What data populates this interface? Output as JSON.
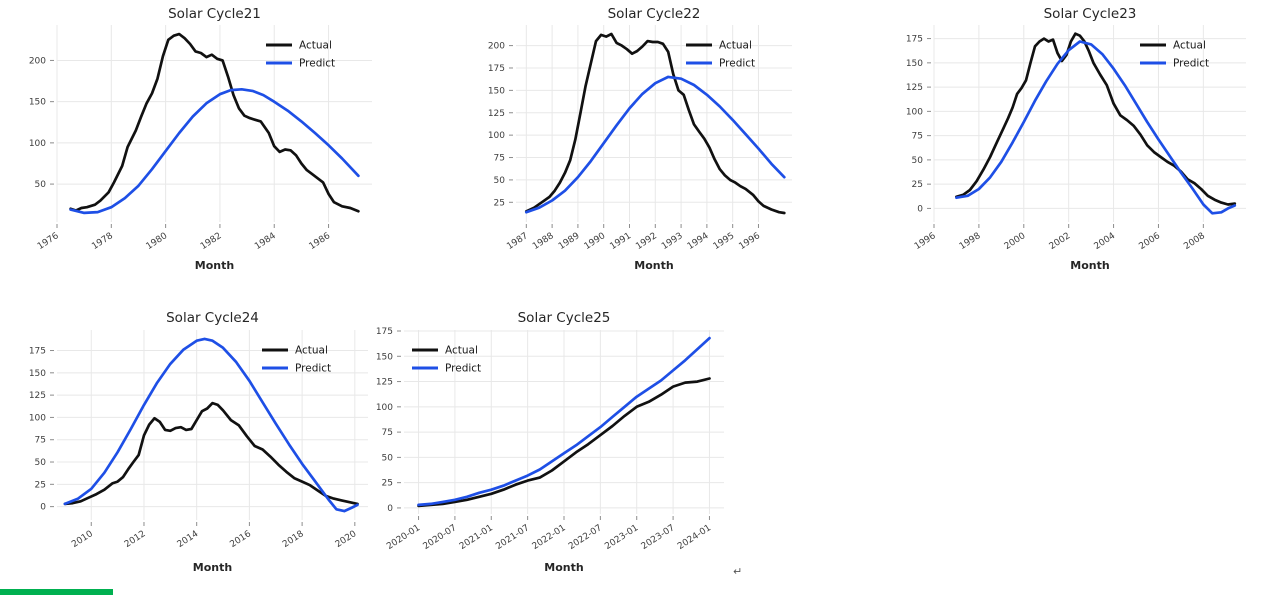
{
  "page": {
    "return_mark": "↵",
    "green_bar_color": "#00b050",
    "background": "#ffffff"
  },
  "palette": {
    "actual": "#111111",
    "predict": "#1e4fe6",
    "grid": "#e8e8e8",
    "tick_mark": "#8c8c8c",
    "tick_text": "#3d3d3d",
    "title_text": "#262626",
    "legend_text": "#1a1a1a"
  },
  "legend_labels": {
    "actual": "Actual",
    "predict": "Predict"
  },
  "chart_data": [
    {
      "type": "line",
      "title": "Solar Cycle21",
      "xlabel": "Month",
      "legend_pos": "upper-right",
      "legend": [
        "Actual",
        "Predict"
      ],
      "xlim": [
        1976.0,
        1987.6
      ],
      "ylim": [
        4,
        243
      ],
      "yticks": [
        50,
        100,
        150,
        200
      ],
      "xticks": [
        {
          "v": 1976,
          "label": "1976"
        },
        {
          "v": 1978,
          "label": "1978"
        },
        {
          "v": 1980,
          "label": "1980"
        },
        {
          "v": 1982,
          "label": "1982"
        },
        {
          "v": 1984,
          "label": "1984"
        },
        {
          "v": 1986,
          "label": "1986"
        }
      ],
      "series": [
        {
          "name": "Actual",
          "color_key": "actual",
          "x": [
            1976.5,
            1976.7,
            1976.9,
            1977.1,
            1977.4,
            1977.6,
            1977.9,
            1978.1,
            1978.4,
            1978.6,
            1978.9,
            1979.1,
            1979.3,
            1979.5,
            1979.7,
            1979.9,
            1980.1,
            1980.3,
            1980.5,
            1980.7,
            1980.9,
            1981.1,
            1981.3,
            1981.5,
            1981.7,
            1981.9,
            1982.1,
            1982.3,
            1982.5,
            1982.7,
            1982.9,
            1983.1,
            1983.3,
            1983.5,
            1983.8,
            1984.0,
            1984.2,
            1984.4,
            1984.6,
            1984.8,
            1985.0,
            1985.2,
            1985.4,
            1985.6,
            1985.8,
            1986.0,
            1986.2,
            1986.5,
            1986.8,
            1987.1
          ],
          "y": [
            20,
            18,
            21,
            22,
            25,
            30,
            40,
            52,
            72,
            95,
            115,
            132,
            148,
            160,
            178,
            205,
            225,
            230,
            232,
            227,
            220,
            211,
            209,
            204,
            207,
            202,
            200,
            180,
            158,
            142,
            133,
            130,
            128,
            126,
            112,
            96,
            89,
            92,
            91,
            85,
            75,
            67,
            62,
            57,
            52,
            38,
            28,
            23,
            21,
            17
          ]
        },
        {
          "name": "Predict",
          "color_key": "predict",
          "x": [
            1976.5,
            1977.0,
            1977.5,
            1978.0,
            1978.5,
            1979.0,
            1979.5,
            1980.0,
            1980.5,
            1981.0,
            1981.5,
            1982.0,
            1982.4,
            1982.8,
            1983.2,
            1983.6,
            1984.0,
            1984.5,
            1985.0,
            1985.5,
            1986.0,
            1986.5,
            1987.1
          ],
          "y": [
            19,
            15,
            16,
            22,
            33,
            48,
            68,
            90,
            112,
            132,
            148,
            159,
            164,
            165,
            163,
            158,
            150,
            139,
            126,
            112,
            97,
            81,
            60
          ]
        }
      ]
    },
    {
      "type": "line",
      "title": "Solar Cycle22",
      "xlabel": "Month",
      "legend_pos": "upper-right",
      "legend": [
        "Actual",
        "Predict"
      ],
      "xlim": [
        1986.6,
        1997.3
      ],
      "ylim": [
        3,
        223
      ],
      "yticks": [
        25,
        50,
        75,
        100,
        125,
        150,
        175,
        200
      ],
      "xticks": [
        {
          "v": 1987,
          "label": "1987"
        },
        {
          "v": 1988,
          "label": "1988"
        },
        {
          "v": 1989,
          "label": "1989"
        },
        {
          "v": 1990,
          "label": "1990"
        },
        {
          "v": 1991,
          "label": "1991"
        },
        {
          "v": 1992,
          "label": "1992"
        },
        {
          "v": 1993,
          "label": "1993"
        },
        {
          "v": 1994,
          "label": "1994"
        },
        {
          "v": 1995,
          "label": "1995"
        },
        {
          "v": 1996,
          "label": "1996"
        }
      ],
      "series": [
        {
          "name": "Actual",
          "color_key": "actual",
          "x": [
            1987.0,
            1987.3,
            1987.6,
            1987.9,
            1988.1,
            1988.3,
            1988.5,
            1988.7,
            1988.9,
            1989.1,
            1989.3,
            1989.5,
            1989.7,
            1989.9,
            1990.1,
            1990.3,
            1990.5,
            1990.7,
            1990.9,
            1991.1,
            1991.3,
            1991.5,
            1991.7,
            1991.9,
            1992.1,
            1992.3,
            1992.5,
            1992.7,
            1992.9,
            1993.1,
            1993.3,
            1993.5,
            1993.7,
            1993.9,
            1994.1,
            1994.3,
            1994.5,
            1994.7,
            1994.9,
            1995.1,
            1995.3,
            1995.5,
            1995.8,
            1996.0,
            1996.2,
            1996.5,
            1996.8,
            1997.0
          ],
          "y": [
            15,
            19,
            25,
            31,
            38,
            47,
            58,
            72,
            95,
            125,
            155,
            180,
            205,
            212,
            210,
            213,
            203,
            200,
            196,
            191,
            194,
            199,
            205,
            204,
            204,
            202,
            193,
            168,
            150,
            145,
            128,
            112,
            104,
            96,
            86,
            73,
            62,
            55,
            50,
            47,
            43,
            40,
            33,
            26,
            21,
            17,
            14,
            13
          ]
        },
        {
          "name": "Predict",
          "color_key": "predict",
          "x": [
            1987.0,
            1987.5,
            1988.0,
            1988.5,
            1989.0,
            1989.5,
            1990.0,
            1990.5,
            1991.0,
            1991.5,
            1992.0,
            1992.5,
            1993.0,
            1993.5,
            1994.0,
            1994.5,
            1995.0,
            1995.5,
            1996.0,
            1996.5,
            1997.0
          ],
          "y": [
            14,
            19,
            27,
            38,
            53,
            71,
            91,
            111,
            130,
            146,
            158,
            165,
            163,
            156,
            145,
            132,
            117,
            101,
            85,
            68,
            53
          ]
        }
      ]
    },
    {
      "type": "line",
      "title": "Solar Cycle23",
      "xlabel": "Month",
      "legend_pos": "upper-right",
      "legend": [
        "Actual",
        "Predict"
      ],
      "xlim": [
        1996.0,
        2009.9
      ],
      "ylim": [
        -14,
        189
      ],
      "yticks": [
        0,
        25,
        50,
        75,
        100,
        125,
        150,
        175
      ],
      "xticks": [
        {
          "v": 1996,
          "label": "1996"
        },
        {
          "v": 1998,
          "label": "1998"
        },
        {
          "v": 2000,
          "label": "2000"
        },
        {
          "v": 2002,
          "label": "2002"
        },
        {
          "v": 2004,
          "label": "2004"
        },
        {
          "v": 2006,
          "label": "2006"
        },
        {
          "v": 2008,
          "label": "2008"
        }
      ],
      "series": [
        {
          "name": "Actual",
          "color_key": "actual",
          "x": [
            1997.0,
            1997.3,
            1997.6,
            1997.9,
            1998.2,
            1998.5,
            1998.8,
            1999.1,
            1999.3,
            1999.5,
            1999.7,
            1999.9,
            2000.1,
            2000.3,
            2000.5,
            2000.7,
            2000.9,
            2001.1,
            2001.3,
            2001.5,
            2001.7,
            2001.9,
            2002.1,
            2002.3,
            2002.5,
            2002.7,
            2002.9,
            2003.1,
            2003.4,
            2003.7,
            2004.0,
            2004.3,
            2004.6,
            2004.9,
            2005.2,
            2005.5,
            2005.8,
            2006.1,
            2006.4,
            2006.7,
            2007.0,
            2007.3,
            2007.6,
            2007.9,
            2008.2,
            2008.5,
            2008.8,
            2009.1,
            2009.4
          ],
          "y": [
            12,
            14,
            19,
            28,
            40,
            53,
            68,
            83,
            93,
            104,
            118,
            124,
            132,
            150,
            167,
            172,
            175,
            172,
            174,
            160,
            152,
            158,
            172,
            180,
            178,
            172,
            162,
            150,
            138,
            127,
            108,
            96,
            91,
            85,
            76,
            65,
            58,
            53,
            48,
            44,
            38,
            30,
            26,
            20,
            13,
            9,
            6,
            4,
            5
          ]
        },
        {
          "name": "Predict",
          "color_key": "predict",
          "x": [
            1997.0,
            1997.5,
            1998.0,
            1998.5,
            1999.0,
            1999.5,
            2000.0,
            2000.5,
            2001.0,
            2001.5,
            2002.0,
            2002.5,
            2003.0,
            2003.5,
            2004.0,
            2004.5,
            2005.0,
            2005.5,
            2006.0,
            2006.5,
            2007.0,
            2007.5,
            2008.0,
            2008.4,
            2008.8,
            2009.1,
            2009.4
          ],
          "y": [
            11,
            13,
            20,
            32,
            48,
            68,
            89,
            111,
            131,
            149,
            163,
            172,
            169,
            159,
            144,
            127,
            108,
            89,
            71,
            54,
            37,
            21,
            4,
            -5,
            -4,
            0,
            3
          ]
        }
      ]
    },
    {
      "type": "line",
      "title": "Solar Cycle24",
      "xlabel": "Month",
      "legend_pos": "upper-right",
      "legend": [
        "Actual",
        "Predict"
      ],
      "xlim": [
        2008.7,
        2020.5
      ],
      "ylim": [
        -15,
        198
      ],
      "yticks": [
        0,
        25,
        50,
        75,
        100,
        125,
        150,
        175
      ],
      "xticks": [
        {
          "v": 2010,
          "label": "2010"
        },
        {
          "v": 2012,
          "label": "2012"
        },
        {
          "v": 2014,
          "label": "2014"
        },
        {
          "v": 2016,
          "label": "2016"
        },
        {
          "v": 2018,
          "label": "2018"
        },
        {
          "v": 2020,
          "label": "2020"
        }
      ],
      "series": [
        {
          "name": "Actual",
          "color_key": "actual",
          "x": [
            2009.0,
            2009.3,
            2009.6,
            2009.9,
            2010.2,
            2010.5,
            2010.8,
            2011.0,
            2011.2,
            2011.4,
            2011.6,
            2011.8,
            2012.0,
            2012.2,
            2012.4,
            2012.6,
            2012.8,
            2013.0,
            2013.2,
            2013.4,
            2013.6,
            2013.8,
            2014.0,
            2014.2,
            2014.4,
            2014.6,
            2014.8,
            2015.0,
            2015.3,
            2015.6,
            2015.9,
            2016.2,
            2016.5,
            2016.8,
            2017.1,
            2017.4,
            2017.7,
            2018.0,
            2018.3,
            2018.6,
            2018.9,
            2019.2,
            2019.5,
            2019.8,
            2020.1
          ],
          "y": [
            3,
            4,
            6,
            10,
            14,
            19,
            26,
            28,
            33,
            42,
            50,
            58,
            80,
            92,
            99,
            95,
            86,
            85,
            88,
            89,
            86,
            87,
            97,
            107,
            110,
            116,
            114,
            108,
            97,
            91,
            79,
            68,
            64,
            56,
            47,
            39,
            32,
            28,
            24,
            18,
            12,
            9,
            7,
            5,
            3
          ]
        },
        {
          "name": "Predict",
          "color_key": "predict",
          "x": [
            2009.0,
            2009.5,
            2010.0,
            2010.5,
            2011.0,
            2011.5,
            2012.0,
            2012.5,
            2013.0,
            2013.5,
            2014.0,
            2014.3,
            2014.6,
            2015.0,
            2015.5,
            2016.0,
            2016.5,
            2017.0,
            2017.5,
            2018.0,
            2018.5,
            2019.0,
            2019.3,
            2019.6,
            2019.9,
            2020.1
          ],
          "y": [
            3,
            9,
            20,
            38,
            61,
            87,
            114,
            139,
            160,
            176,
            186,
            188,
            186,
            178,
            162,
            141,
            117,
            93,
            70,
            48,
            28,
            8,
            -3,
            -5,
            -1,
            2
          ]
        }
      ]
    },
    {
      "type": "line",
      "title": "Solar Cycle25",
      "xlabel": "Month",
      "legend_pos": "upper-left",
      "legend": [
        "Actual",
        "Predict"
      ],
      "xlim": [
        -2.4,
        50.4
      ],
      "ylim": [
        -6,
        176
      ],
      "yticks": [
        0,
        25,
        50,
        75,
        100,
        125,
        150,
        175
      ],
      "xticks": [
        {
          "v": 0,
          "label": "2020-01"
        },
        {
          "v": 6,
          "label": "2020-07"
        },
        {
          "v": 12,
          "label": "2021-01"
        },
        {
          "v": 18,
          "label": "2021-07"
        },
        {
          "v": 24,
          "label": "2022-01"
        },
        {
          "v": 30,
          "label": "2022-07"
        },
        {
          "v": 36,
          "label": "2023-01"
        },
        {
          "v": 42,
          "label": "2023-07"
        },
        {
          "v": 48,
          "label": "2024-01"
        }
      ],
      "series": [
        {
          "name": "Actual",
          "color_key": "actual",
          "x": [
            0,
            2,
            4,
            6,
            8,
            10,
            12,
            14,
            16,
            18,
            20,
            22,
            24,
            26,
            28,
            30,
            32,
            34,
            36,
            38,
            40,
            42,
            44,
            46,
            48
          ],
          "y": [
            2,
            3,
            4,
            6,
            8,
            11,
            14,
            18,
            23,
            27,
            30,
            37,
            46,
            55,
            63,
            72,
            81,
            91,
            100,
            105,
            112,
            120,
            124,
            125,
            128
          ]
        },
        {
          "name": "Predict",
          "color_key": "predict",
          "x": [
            0,
            2,
            4,
            6,
            8,
            10,
            12,
            14,
            16,
            18,
            20,
            22,
            24,
            26,
            28,
            30,
            32,
            34,
            36,
            38,
            40,
            42,
            44,
            46,
            48
          ],
          "y": [
            3,
            4,
            6,
            8,
            11,
            15,
            18,
            22,
            27,
            32,
            38,
            46,
            54,
            62,
            71,
            80,
            90,
            100,
            110,
            118,
            126,
            136,
            146,
            157,
            168
          ]
        }
      ]
    }
  ]
}
